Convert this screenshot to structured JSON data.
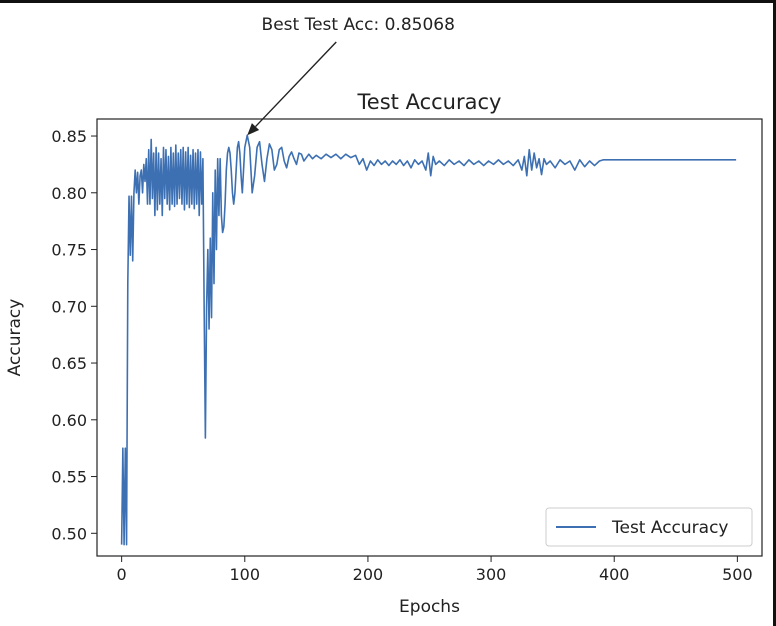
{
  "chart_data": {
    "type": "line",
    "title": "Test Accuracy",
    "xlabel": "Epochs",
    "ylabel": "Accuracy",
    "xlim": [
      -20,
      520
    ],
    "ylim": [
      0.48,
      0.865
    ],
    "xticks": [
      0,
      100,
      200,
      300,
      400,
      500
    ],
    "xtick_labels": [
      "0",
      "100",
      "200",
      "300",
      "400",
      "500"
    ],
    "yticks": [
      0.5,
      0.55,
      0.6,
      0.65,
      0.7,
      0.75,
      0.8,
      0.85
    ],
    "ytick_labels": [
      "0.50",
      "0.55",
      "0.60",
      "0.65",
      "0.70",
      "0.75",
      "0.80",
      "0.85"
    ],
    "grid": false,
    "legend_position": "lower-right",
    "annotation": {
      "text": "Best Test Acc: 0.85068",
      "x": 102,
      "y": 0.85068
    },
    "series": [
      {
        "name": "Test Accuracy",
        "color": "#3d70b2",
        "points": [
          [
            0,
            0.49
          ],
          [
            1,
            0.575
          ],
          [
            2,
            0.49
          ],
          [
            3,
            0.575
          ],
          [
            4,
            0.49
          ],
          [
            5,
            0.72
          ],
          [
            6,
            0.797
          ],
          [
            7,
            0.745
          ],
          [
            8,
            0.797
          ],
          [
            9,
            0.74
          ],
          [
            10,
            0.8
          ],
          [
            11,
            0.82
          ],
          [
            12,
            0.8
          ],
          [
            13,
            0.818
          ],
          [
            14,
            0.79
          ],
          [
            15,
            0.815
          ],
          [
            16,
            0.82
          ],
          [
            17,
            0.8
          ],
          [
            18,
            0.825
          ],
          [
            19,
            0.81
          ],
          [
            20,
            0.83
          ],
          [
            21,
            0.79
          ],
          [
            22,
            0.838
          ],
          [
            23,
            0.79
          ],
          [
            24,
            0.847
          ],
          [
            25,
            0.795
          ],
          [
            26,
            0.835
          ],
          [
            27,
            0.78
          ],
          [
            28,
            0.84
          ],
          [
            29,
            0.785
          ],
          [
            30,
            0.835
          ],
          [
            31,
            0.79
          ],
          [
            32,
            0.83
          ],
          [
            33,
            0.78
          ],
          [
            34,
            0.84
          ],
          [
            35,
            0.795
          ],
          [
            36,
            0.838
          ],
          [
            37,
            0.79
          ],
          [
            38,
            0.832
          ],
          [
            39,
            0.785
          ],
          [
            40,
            0.84
          ],
          [
            41,
            0.79
          ],
          [
            42,
            0.835
          ],
          [
            43,
            0.788
          ],
          [
            44,
            0.842
          ],
          [
            45,
            0.79
          ],
          [
            46,
            0.835
          ],
          [
            47,
            0.795
          ],
          [
            48,
            0.838
          ],
          [
            49,
            0.79
          ],
          [
            50,
            0.84
          ],
          [
            51,
            0.785
          ],
          [
            52,
            0.836
          ],
          [
            53,
            0.79
          ],
          [
            54,
            0.84
          ],
          [
            55,
            0.787
          ],
          [
            56,
            0.833
          ],
          [
            57,
            0.79
          ],
          [
            58,
            0.838
          ],
          [
            59,
            0.786
          ],
          [
            60,
            0.835
          ],
          [
            61,
            0.79
          ],
          [
            62,
            0.838
          ],
          [
            63,
            0.78
          ],
          [
            64,
            0.836
          ],
          [
            65,
            0.79
          ],
          [
            66,
            0.83
          ],
          [
            67,
            0.7
          ],
          [
            68,
            0.584
          ],
          [
            69,
            0.7
          ],
          [
            70,
            0.75
          ],
          [
            71,
            0.68
          ],
          [
            72,
            0.76
          ],
          [
            73,
            0.69
          ],
          [
            74,
            0.8
          ],
          [
            75,
            0.72
          ],
          [
            76,
            0.82
          ],
          [
            77,
            0.75
          ],
          [
            78,
            0.83
          ],
          [
            79,
            0.78
          ],
          [
            80,
            0.83
          ],
          [
            81,
            0.78
          ],
          [
            82,
            0.765
          ],
          [
            83,
            0.77
          ],
          [
            84,
            0.79
          ],
          [
            85,
            0.82
          ],
          [
            86,
            0.835
          ],
          [
            87,
            0.84
          ],
          [
            88,
            0.835
          ],
          [
            89,
            0.82
          ],
          [
            90,
            0.8
          ],
          [
            91,
            0.79
          ],
          [
            92,
            0.8
          ],
          [
            93,
            0.82
          ],
          [
            94,
            0.84
          ],
          [
            95,
            0.845
          ],
          [
            96,
            0.835
          ],
          [
            97,
            0.815
          ],
          [
            98,
            0.8
          ],
          [
            99,
            0.82
          ],
          [
            100,
            0.84
          ],
          [
            102,
            0.85068
          ],
          [
            104,
            0.84
          ],
          [
            105,
            0.82
          ],
          [
            106,
            0.8
          ],
          [
            108,
            0.815
          ],
          [
            110,
            0.84
          ],
          [
            112,
            0.845
          ],
          [
            114,
            0.825
          ],
          [
            116,
            0.81
          ],
          [
            118,
            0.83
          ],
          [
            120,
            0.843
          ],
          [
            122,
            0.838
          ],
          [
            124,
            0.82
          ],
          [
            126,
            0.825
          ],
          [
            128,
            0.838
          ],
          [
            130,
            0.84
          ],
          [
            132,
            0.828
          ],
          [
            134,
            0.822
          ],
          [
            136,
            0.832
          ],
          [
            138,
            0.836
          ],
          [
            140,
            0.83
          ],
          [
            142,
            0.825
          ],
          [
            144,
            0.835
          ],
          [
            146,
            0.834
          ],
          [
            148,
            0.828
          ],
          [
            150,
            0.831
          ],
          [
            152,
            0.834
          ],
          [
            155,
            0.83
          ],
          [
            158,
            0.833
          ],
          [
            162,
            0.83
          ],
          [
            166,
            0.834
          ],
          [
            170,
            0.831
          ],
          [
            174,
            0.834
          ],
          [
            178,
            0.83
          ],
          [
            182,
            0.834
          ],
          [
            186,
            0.831
          ],
          [
            190,
            0.833
          ],
          [
            193,
            0.825
          ],
          [
            196,
            0.83
          ],
          [
            199,
            0.82
          ],
          [
            202,
            0.828
          ],
          [
            205,
            0.824
          ],
          [
            208,
            0.829
          ],
          [
            211,
            0.825
          ],
          [
            214,
            0.828
          ],
          [
            217,
            0.824
          ],
          [
            220,
            0.828
          ],
          [
            223,
            0.825
          ],
          [
            226,
            0.829
          ],
          [
            229,
            0.824
          ],
          [
            232,
            0.828
          ],
          [
            235,
            0.822
          ],
          [
            238,
            0.829
          ],
          [
            241,
            0.825
          ],
          [
            244,
            0.828
          ],
          [
            247,
            0.82
          ],
          [
            249,
            0.835
          ],
          [
            251,
            0.815
          ],
          [
            253,
            0.832
          ],
          [
            255,
            0.825
          ],
          [
            258,
            0.828
          ],
          [
            262,
            0.824
          ],
          [
            266,
            0.829
          ],
          [
            270,
            0.825
          ],
          [
            274,
            0.828
          ],
          [
            278,
            0.824
          ],
          [
            282,
            0.829
          ],
          [
            286,
            0.825
          ],
          [
            290,
            0.828
          ],
          [
            294,
            0.824
          ],
          [
            298,
            0.828
          ],
          [
            302,
            0.825
          ],
          [
            306,
            0.829
          ],
          [
            310,
            0.825
          ],
          [
            314,
            0.828
          ],
          [
            318,
            0.824
          ],
          [
            322,
            0.829
          ],
          [
            325,
            0.82
          ],
          [
            327,
            0.832
          ],
          [
            329,
            0.815
          ],
          [
            331,
            0.838
          ],
          [
            333,
            0.82
          ],
          [
            335,
            0.835
          ],
          [
            337,
            0.822
          ],
          [
            339,
            0.83
          ],
          [
            341,
            0.816
          ],
          [
            343,
            0.83
          ],
          [
            345,
            0.825
          ],
          [
            348,
            0.828
          ],
          [
            352,
            0.822
          ],
          [
            356,
            0.829
          ],
          [
            360,
            0.825
          ],
          [
            364,
            0.828
          ],
          [
            368,
            0.82
          ],
          [
            372,
            0.829
          ],
          [
            376,
            0.823
          ],
          [
            380,
            0.828
          ],
          [
            384,
            0.824
          ],
          [
            388,
            0.828
          ],
          [
            391,
            0.829
          ],
          [
            400,
            0.829
          ],
          [
            450,
            0.829
          ],
          [
            499,
            0.829
          ]
        ]
      }
    ]
  }
}
